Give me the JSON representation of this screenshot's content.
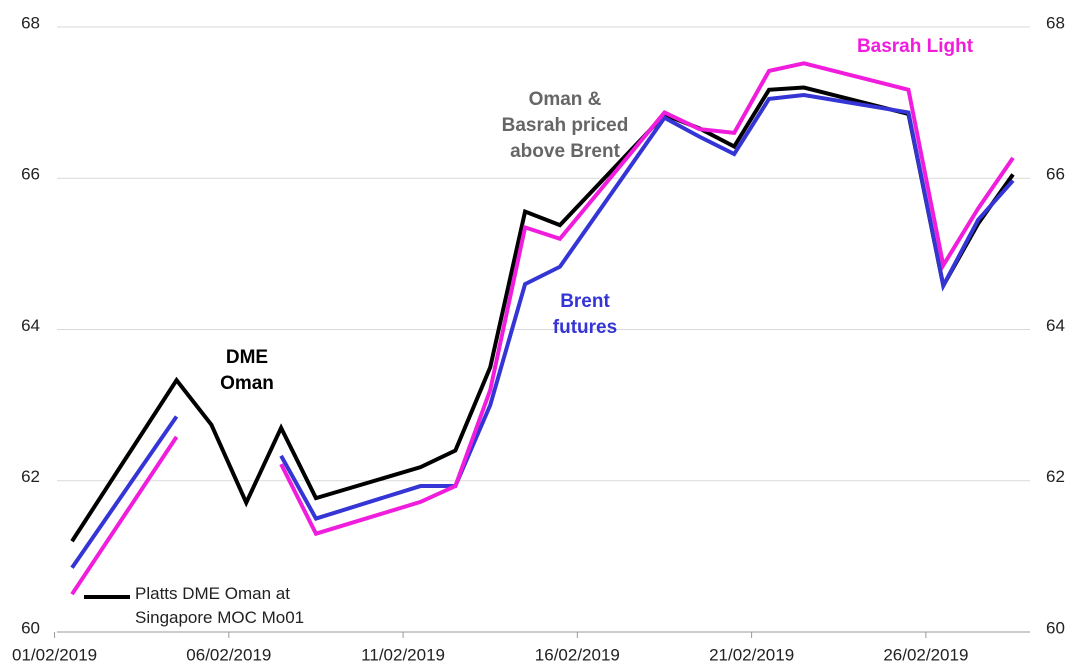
{
  "chart_data": {
    "type": "line",
    "x": [
      "01/02/2019",
      "04/02/2019",
      "05/02/2019",
      "06/02/2019",
      "07/02/2019",
      "08/02/2019",
      "11/02/2019",
      "12/02/2019",
      "13/02/2019",
      "14/02/2019",
      "15/02/2019",
      "18/02/2019",
      "19/02/2019",
      "20/02/2019",
      "21/02/2019",
      "22/02/2019",
      "25/02/2019",
      "26/02/2019",
      "27/02/2019",
      "28/02/2019"
    ],
    "xlim": [
      "01/02/2019",
      "28/02/2019"
    ],
    "xticks": [
      "01/02/2019",
      "06/02/2019",
      "11/02/2019",
      "16/02/2019",
      "21/02/2019",
      "26/02/2019"
    ],
    "ylim": [
      60,
      68
    ],
    "yticks": [
      60,
      62,
      64,
      66,
      68
    ],
    "y2lim": [
      60,
      68
    ],
    "y2ticks": [
      60,
      62,
      64,
      66,
      68
    ],
    "grid": true,
    "legend": "bottom-left",
    "series": [
      {
        "name": "Platts DME Oman at Singapore MOC Mo01",
        "color": "#000000",
        "values": [
          61.2,
          63.33,
          62.74,
          61.71,
          62.7,
          61.77,
          62.18,
          62.4,
          63.5,
          65.56,
          65.38,
          66.84,
          66.66,
          66.42,
          67.17,
          67.2,
          66.85,
          64.58,
          65.4,
          66.05
        ]
      },
      {
        "name": "Brent futures",
        "color": "#3535d6",
        "values": [
          60.85,
          62.85,
          null,
          null,
          62.33,
          61.5,
          61.93,
          61.93,
          63.0,
          64.6,
          64.83,
          66.8,
          66.55,
          66.32,
          67.05,
          67.1,
          66.87,
          64.58,
          65.45,
          65.97
        ]
      },
      {
        "name": "Basrah Light",
        "color": "#f01edc",
        "values": [
          60.5,
          62.58,
          null,
          null,
          62.22,
          61.3,
          61.72,
          61.93,
          63.2,
          65.35,
          65.2,
          66.87,
          66.65,
          66.6,
          67.42,
          67.52,
          67.17,
          64.85,
          65.6,
          66.27
        ]
      }
    ],
    "annotations": [
      {
        "lines": [
          "DME",
          "Oman"
        ],
        "color": "#000000"
      },
      {
        "lines": [
          "Oman &",
          "Basrah priced",
          "above Brent"
        ],
        "color": "#666666"
      }
    ]
  }
}
